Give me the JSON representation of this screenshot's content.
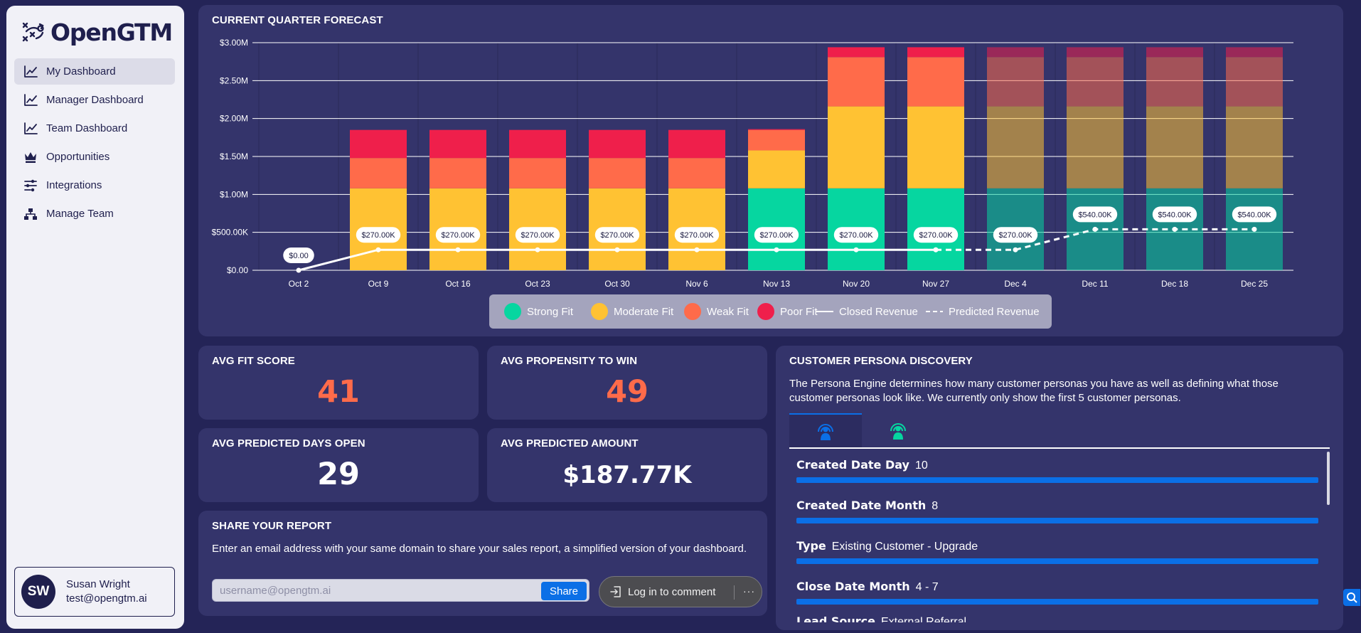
{
  "app": {
    "name": "OpenGTM"
  },
  "sidebar": {
    "items": [
      {
        "label": "My Dashboard",
        "icon": "chart-line-icon",
        "active": true
      },
      {
        "label": "Manager Dashboard",
        "icon": "chart-line-icon",
        "active": false
      },
      {
        "label": "Team Dashboard",
        "icon": "chart-line-icon",
        "active": false
      },
      {
        "label": "Opportunities",
        "icon": "crown-icon",
        "active": false
      },
      {
        "label": "Integrations",
        "icon": "sliders-icon",
        "active": false
      },
      {
        "label": "Manage Team",
        "icon": "org-chart-icon",
        "active": false
      }
    ],
    "user": {
      "initials": "SW",
      "name": "Susan Wright",
      "email": "test@opengtm.ai"
    }
  },
  "forecast": {
    "title": "CURRENT QUARTER FORECAST"
  },
  "chart_data": {
    "type": "bar",
    "stacked": true,
    "categories": [
      "Oct 2",
      "Oct 9",
      "Oct 16",
      "Oct 23",
      "Oct 30",
      "Nov 6",
      "Nov 13",
      "Nov 20",
      "Nov 27",
      "Dec 4",
      "Dec 11",
      "Dec 18",
      "Dec 25"
    ],
    "ylim": [
      0,
      3000000
    ],
    "yticks": [
      "$0.00",
      "$500.00K",
      "$1.00M",
      "$1.50M",
      "$2.00M",
      "$2.50M",
      "$3.00M"
    ],
    "series": [
      {
        "name": "Strong Fit",
        "color": "#06d6a0",
        "values": [
          0,
          0,
          0,
          0,
          0,
          0,
          1080000,
          1080000,
          1080000,
          1080000,
          1080000,
          1080000,
          1080000
        ]
      },
      {
        "name": "Moderate Fit",
        "color": "#ffc233",
        "values": [
          0,
          1080000,
          1080000,
          1080000,
          1080000,
          1080000,
          500000,
          1080000,
          1080000,
          1080000,
          1080000,
          1080000,
          1080000
        ]
      },
      {
        "name": "Weak Fit",
        "color": "#ff6b4a",
        "values": [
          0,
          400000,
          400000,
          400000,
          400000,
          400000,
          270000,
          650000,
          650000,
          650000,
          650000,
          650000,
          650000
        ]
      },
      {
        "name": "Poor Fit",
        "color": "#ef1f4b",
        "values": [
          0,
          370000,
          370000,
          370000,
          370000,
          370000,
          10000,
          130000,
          130000,
          130000,
          130000,
          130000,
          130000
        ]
      }
    ],
    "projected_from_index": 9,
    "lines": [
      {
        "name": "Closed Revenue",
        "style": "solid",
        "values": [
          0,
          270000,
          270000,
          270000,
          270000,
          270000,
          270000,
          270000,
          270000,
          null,
          null,
          null,
          null
        ]
      },
      {
        "name": "Predicted Revenue",
        "style": "dashed",
        "values": [
          null,
          null,
          null,
          null,
          null,
          null,
          null,
          null,
          270000,
          270000,
          540000,
          540000,
          540000
        ]
      }
    ],
    "point_labels": [
      "$0.00",
      "$270.00K",
      "$270.00K",
      "$270.00K",
      "$270.00K",
      "$270.00K",
      "$270.00K",
      "$270.00K",
      "$270.00K",
      "$270.00K",
      "$540.00K",
      "$540.00K",
      "$540.00K"
    ],
    "legend": {
      "position": "bottom-center",
      "items": [
        "Strong Fit",
        "Moderate Fit",
        "Weak Fit",
        "Poor Fit",
        "Closed Revenue",
        "Predicted Revenue"
      ]
    },
    "grid": true
  },
  "stats": {
    "fit": {
      "title": "AVG FIT SCORE",
      "value": "41",
      "color": "#ff6b4a"
    },
    "propensity": {
      "title": "AVG PROPENSITY TO WIN",
      "value": "49",
      "color": "#ff6b4a"
    },
    "days": {
      "title": "AVG PREDICTED DAYS OPEN",
      "value": "29",
      "color": "#ffffff"
    },
    "amount": {
      "title": "AVG PREDICTED AMOUNT",
      "value": "$187.77K",
      "color": "#ffffff"
    }
  },
  "share": {
    "title": "SHARE YOUR REPORT",
    "text": "Enter an email address with your same domain to share your sales report, a simplified version of your dashboard.",
    "placeholder": "username@opengtm.ai",
    "button": "Share"
  },
  "comment": {
    "label": "Log in to comment",
    "more": "···"
  },
  "persona": {
    "title": "CUSTOMER PERSONA DISCOVERY",
    "description": "The Persona Engine determines how many customer personas you have as well as defining what those customer personas look like. We currently only show the first 5 customer personas.",
    "tabs": [
      {
        "icon": "persona-radar-icon",
        "color": "#0b6fe6",
        "active": true
      },
      {
        "icon": "persona-radar-icon",
        "color": "#06d6a0",
        "active": false
      }
    ],
    "attributes": [
      {
        "name": "Created Date Day",
        "value": "10"
      },
      {
        "name": "Created Date Month",
        "value": "8"
      },
      {
        "name": "Type",
        "value": "Existing Customer - Upgrade"
      },
      {
        "name": "Close Date Month",
        "value": "4 - 7"
      },
      {
        "name": "Lead Source",
        "value": "External Referral"
      }
    ]
  }
}
